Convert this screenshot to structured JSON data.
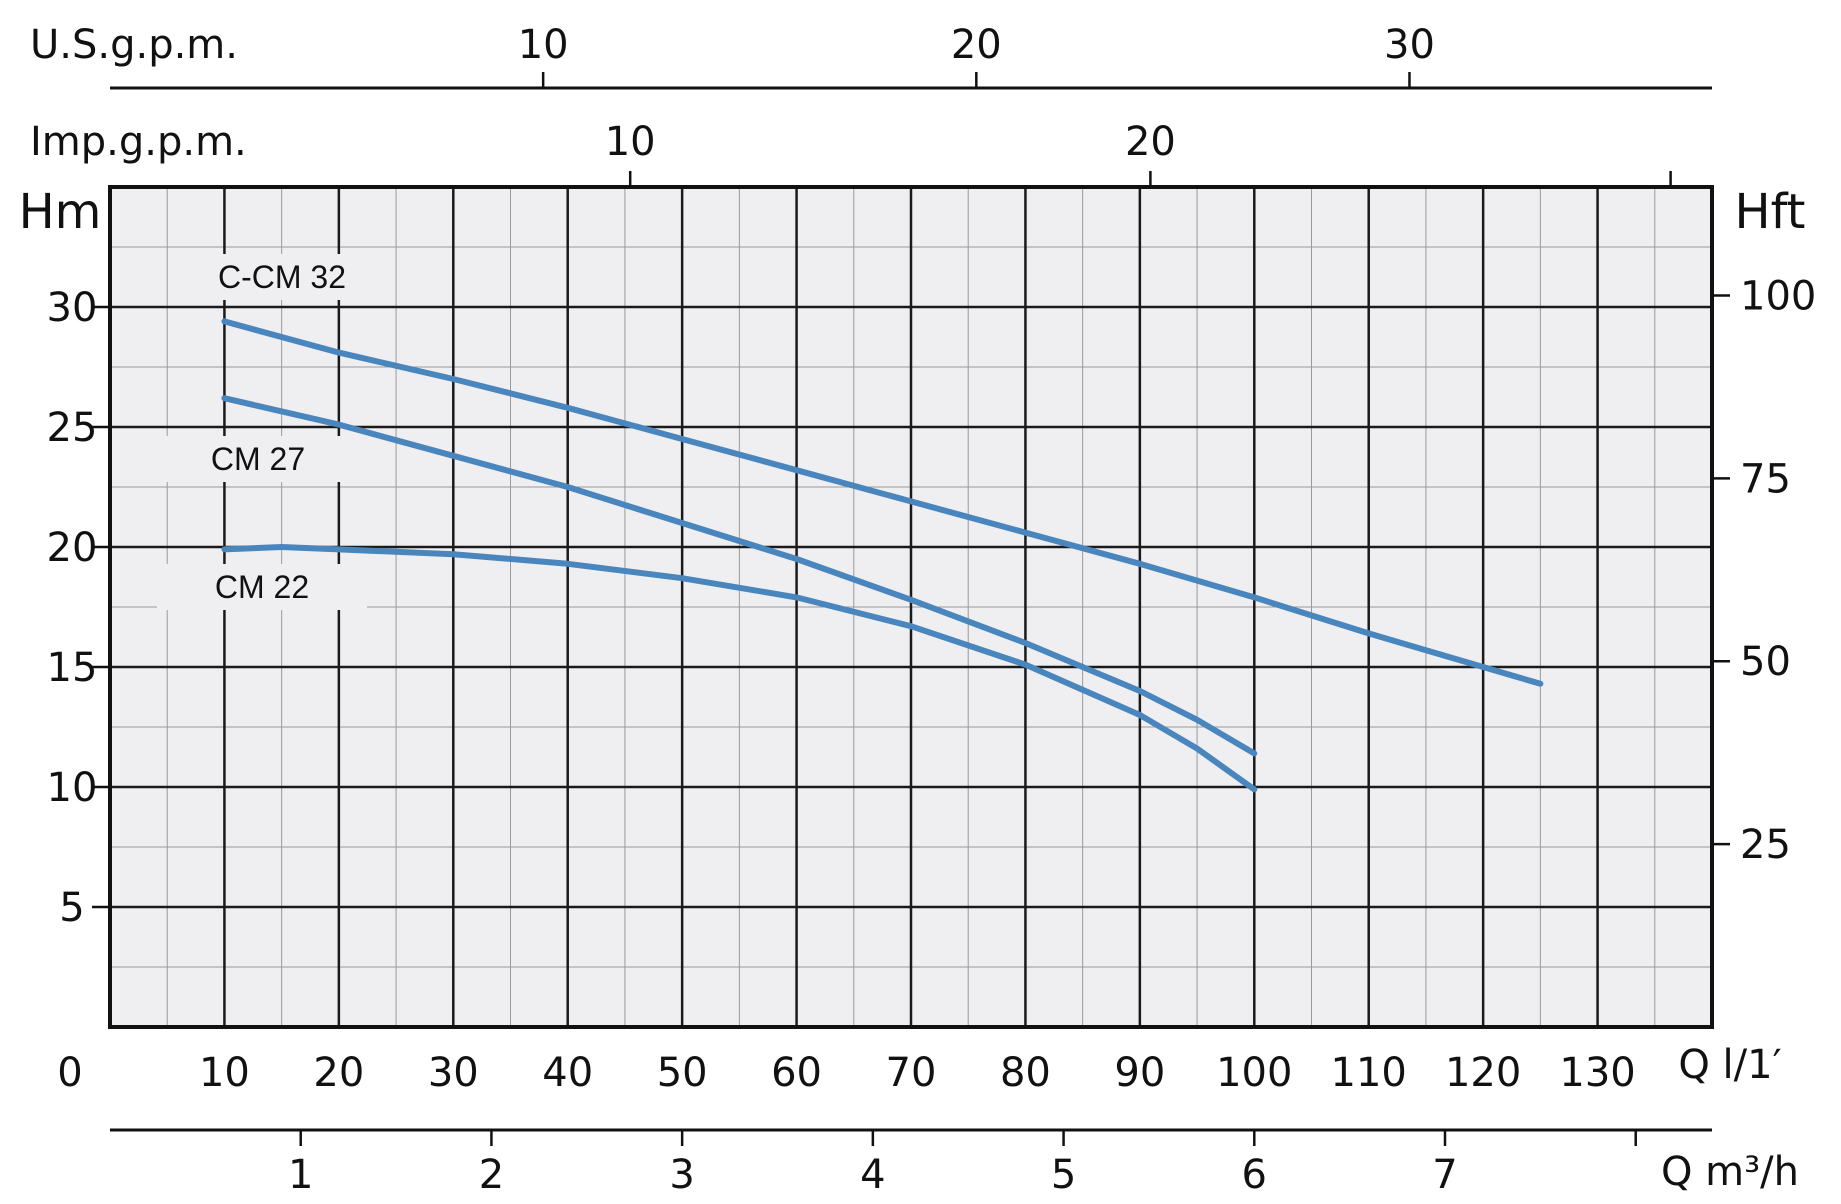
{
  "chart_data": {
    "type": "line",
    "title": "",
    "xlabel": "Q l/1′",
    "xlim": [
      0,
      140
    ],
    "x_ticks": [
      0,
      10,
      20,
      30,
      40,
      50,
      60,
      70,
      80,
      90,
      100,
      110,
      120,
      130
    ],
    "ylabel_left": "Hm",
    "ylim": [
      0,
      35
    ],
    "y_ticks_left": [
      5,
      10,
      15,
      20,
      25,
      30
    ],
    "ylabel_right": "Hft",
    "y_ticks_right": [
      25,
      50,
      75,
      100
    ],
    "top_axis_usgpm": {
      "label": "U.S.g.p.m.",
      "ticks": [
        10,
        20,
        30
      ]
    },
    "top_axis_impgpm": {
      "label": "Imp.g.p.m.",
      "ticks": [
        10,
        20
      ]
    },
    "bottom_axis_m3h": {
      "label": "Q m³/h",
      "ticks": [
        1,
        2,
        3,
        4,
        5,
        6,
        7
      ]
    },
    "grid": true,
    "series": [
      {
        "name": "C-CM 32",
        "x": [
          10,
          20,
          30,
          40,
          50,
          60,
          70,
          80,
          90,
          100,
          110,
          120,
          125
        ],
        "y": [
          29.4,
          28.1,
          27.0,
          25.8,
          24.5,
          23.2,
          21.9,
          20.6,
          19.3,
          17.9,
          16.4,
          15.0,
          14.3
        ]
      },
      {
        "name": "CM 27",
        "x": [
          10,
          20,
          30,
          40,
          50,
          60,
          70,
          80,
          90,
          95,
          100
        ],
        "y": [
          26.2,
          25.1,
          23.8,
          22.5,
          21.0,
          19.5,
          17.8,
          16.0,
          14.0,
          12.8,
          11.4
        ]
      },
      {
        "name": "CM 22",
        "x": [
          10,
          15,
          20,
          30,
          40,
          50,
          60,
          70,
          80,
          90,
          95,
          100
        ],
        "y": [
          19.9,
          20.0,
          19.9,
          19.7,
          19.3,
          18.7,
          17.9,
          16.7,
          15.1,
          13.0,
          11.6,
          9.9
        ]
      }
    ],
    "colors": {
      "series": "#4a86be",
      "grid_major": "#1a1a1a",
      "grid_minor": "#9a9a9a",
      "plot_bg": "#efeff1"
    }
  }
}
